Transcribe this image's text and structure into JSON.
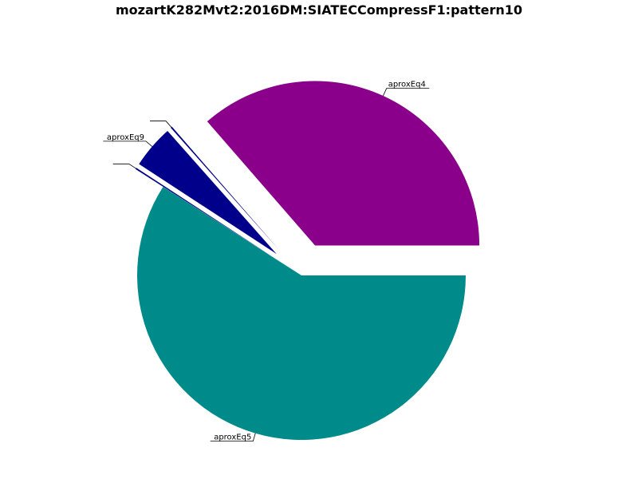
{
  "chart_data": {
    "type": "pie",
    "title": "mozartK282Mvt2:2016DM:SIATECCompressF1:pattern10",
    "slices": [
      {
        "label": "aproxEq4",
        "value": 36.4,
        "color": "#8b008b",
        "explode": 0.2
      },
      {
        "label": "",
        "value": 0.15,
        "color": "#00008b",
        "explode": 0.2
      },
      {
        "label": "aproxEq9",
        "value": 4.25,
        "color": "#00008b",
        "explode": 0.2
      },
      {
        "label": "",
        "value": 0.15,
        "color": "#00008b",
        "explode": 0.2
      },
      {
        "label": "aproxEq5",
        "value": 59.05,
        "color": "#008b8b",
        "explode": 0
      }
    ],
    "start_angle": 0,
    "direction": "counterclockwise",
    "legend": "none",
    "grid": false
  }
}
